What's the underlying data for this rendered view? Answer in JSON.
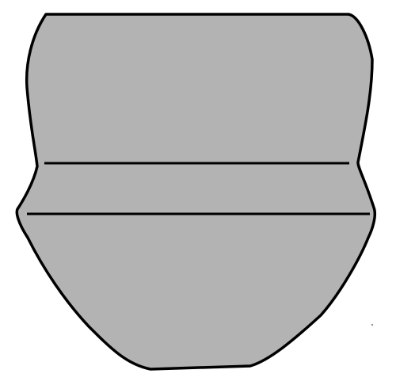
{
  "figure": {
    "shape": "vessel-profile-silhouette",
    "colors": {
      "fill": "#b3b3b3",
      "stroke": "#000000",
      "background": "#ffffff"
    },
    "bands": [
      {
        "name": "upper-body"
      },
      {
        "name": "shoulder-band"
      },
      {
        "name": "lower-body"
      }
    ]
  }
}
